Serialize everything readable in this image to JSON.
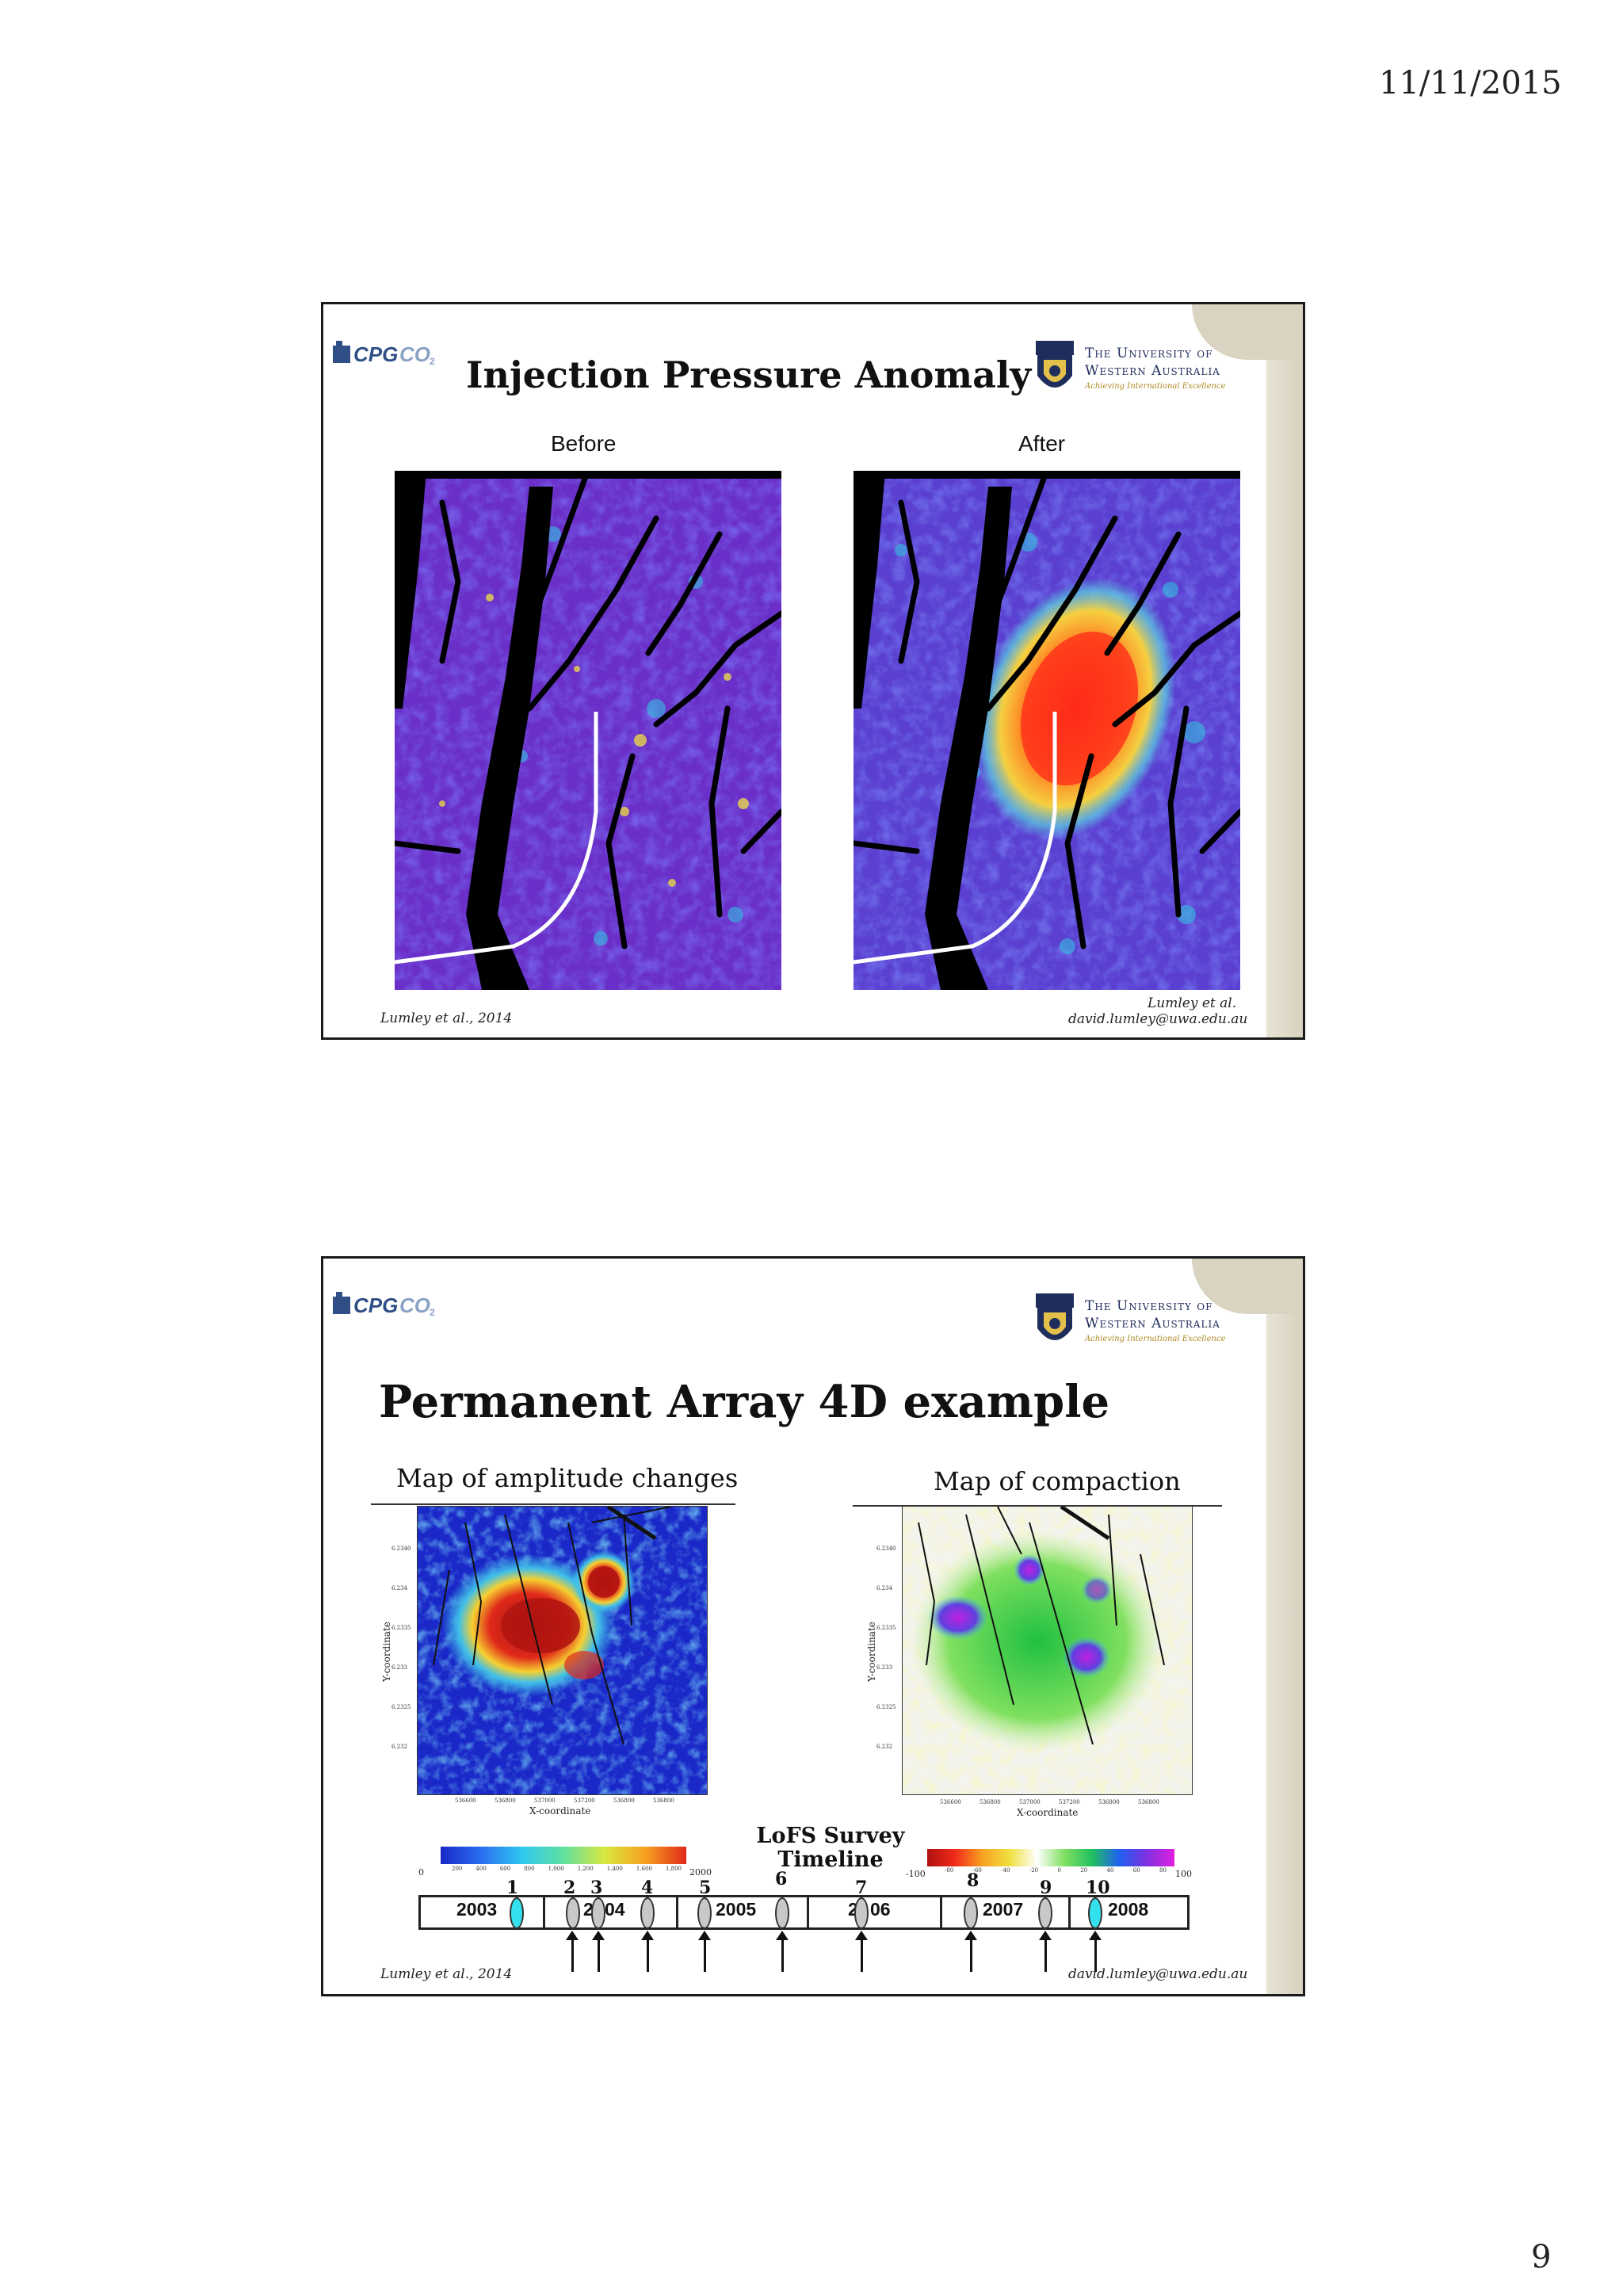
{
  "page": {
    "date": "11/11/2015",
    "number": "9"
  },
  "slide1": {
    "title": "Injection Pressure Anomaly",
    "label_before": "Before",
    "label_after": "After",
    "citation_left": "Lumley et al., 2014",
    "citation_right_1": "Lumley et al.",
    "citation_right_2": "david.lumley@uwa.edu.au"
  },
  "logos": {
    "cpg": "CPGCO",
    "uwa_name_1": "The University of",
    "uwa_name_2": "Western Australia",
    "uwa_tagline": "Achieving International Excellence"
  },
  "slide2": {
    "title": "Permanent Array 4D example",
    "caption_left": "Map of amplitude changes",
    "caption_right": "Map of compaction",
    "xlabel": "X-coordinate",
    "ylabel": "Y-coordinate",
    "xticks": [
      "536600",
      "536800",
      "537000",
      "537200",
      "536800",
      "536800"
    ],
    "yticks": [
      "6.2340",
      "6.234",
      "6.2335",
      "6.233",
      "6.2325",
      "6.232"
    ],
    "colorbar_left": {
      "min": "0",
      "max": "2000",
      "ticks": [
        "200",
        "400",
        "600",
        "800",
        "1,000",
        "1,200",
        "1,400",
        "1,600",
        "1,800"
      ]
    },
    "colorbar_right": {
      "min": "-100",
      "max": "100",
      "ticks": [
        "-80",
        "-60",
        "-40",
        "-20",
        "0",
        "20",
        "40",
        "60",
        "80"
      ]
    },
    "timeline_title_1": "LoFS Survey",
    "timeline_title_2": "Timeline",
    "years": [
      "2003",
      "2",
      "04",
      "2005",
      "2",
      "06",
      "2007",
      "2008"
    ],
    "survey_numbers": [
      "1",
      "2",
      "3",
      "4",
      "5",
      "6",
      "7",
      "8",
      "9",
      "10"
    ],
    "citation_left": "Lumley et al., 2014",
    "citation_right": "david.lumley@uwa.edu.au"
  },
  "colors": {
    "map_blue": "#3a3ad8",
    "map_purple": "#6a2fc8",
    "anomaly_red": "#ff2a1a",
    "ellipse_cyan": "#33e0ee",
    "crest_navy": "#1f2d5c",
    "tagline_gold": "#b08a24"
  }
}
